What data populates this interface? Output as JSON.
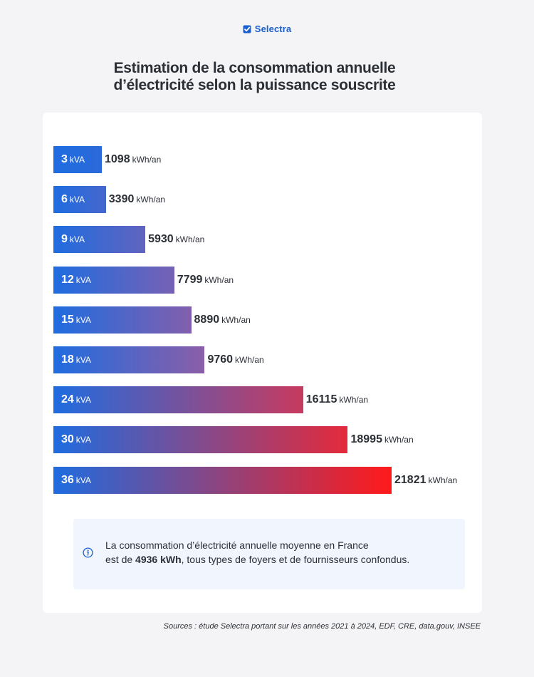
{
  "brand": {
    "name": "Selectra",
    "icon": "check-square-icon",
    "color": "#1a5fcf"
  },
  "chart_data": {
    "type": "bar",
    "orientation": "horizontal",
    "title": "Estimation de la consommation annuelle d’électricité selon la puissance souscrite",
    "title_lines": [
      "Estimation de la consommation annuelle",
      "d’électricité selon la puissance souscrite"
    ],
    "category_unit": "kVA",
    "value_unit": "kWh/an",
    "categories": [
      "3",
      "6",
      "9",
      "12",
      "15",
      "18",
      "24",
      "30",
      "36"
    ],
    "values": [
      1098,
      3390,
      5930,
      7799,
      8890,
      9760,
      16115,
      18995,
      21821
    ],
    "xlim": [
      0,
      21821
    ],
    "grid": false,
    "colors": {
      "low": "#1f6ce0",
      "mid": "#8c5ea8",
      "high": "#ff1a1a"
    }
  },
  "info": {
    "icon": "info-circle-icon",
    "line1": "La consommation d’électricité annuelle moyenne en France",
    "prefix": "est de ",
    "highlight": "4936 kWh",
    "suffix": ", tous types de foyers et de fournisseurs confondus."
  },
  "sources": "Sources : étude Selectra portant sur les années 2021 à 2024, EDF, CRE, data.gouv, INSEE"
}
